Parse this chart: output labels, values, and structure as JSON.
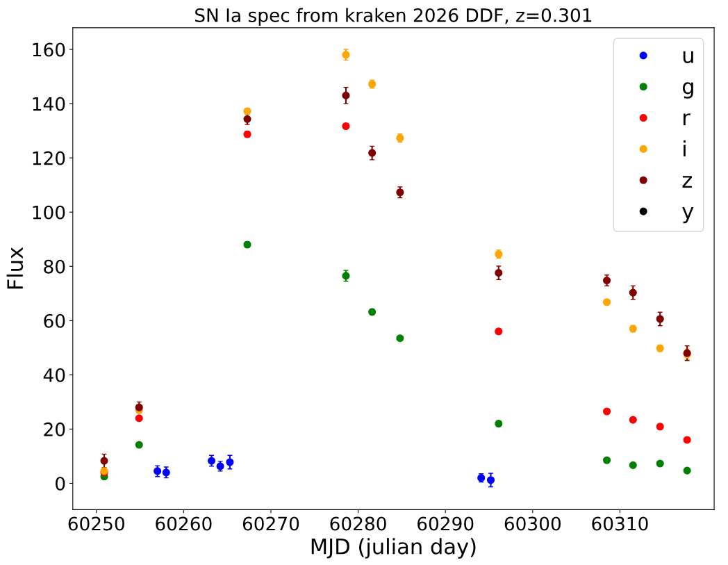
{
  "chart_data": {
    "type": "scatter",
    "title": "SN Ia spec from kraken 2026 DDF, z=0.301",
    "xlabel": "MJD (julian day)",
    "ylabel": "Flux",
    "xlim": [
      60247.3,
      60320.8
    ],
    "ylim": [
      -9.7,
      168
    ],
    "xticks": [
      60250,
      60260,
      60270,
      60280,
      60290,
      60300,
      60310
    ],
    "yticks": [
      0,
      20,
      40,
      60,
      80,
      100,
      120,
      140,
      160
    ],
    "grid": false,
    "legend": "top right",
    "marker": "circle",
    "series": [
      {
        "name": "u",
        "color": "#0000ff",
        "x": [
          60257.0,
          60258.0,
          60263.2,
          60264.2,
          60265.3,
          60294.1,
          60295.2
        ],
        "values": [
          4.5,
          4,
          8.3,
          6.3,
          7.8,
          2,
          1.2
        ],
        "errors": [
          2,
          2,
          2,
          1.8,
          2.5,
          1.5,
          2.5
        ]
      },
      {
        "name": "g",
        "color": "#008000",
        "x": [
          60250.9,
          60254.9,
          60267.3,
          60278.6,
          60281.6,
          60284.8,
          60296.1,
          60308.5,
          60311.5,
          60314.6,
          60317.7
        ],
        "values": [
          2.5,
          14.2,
          88,
          76.5,
          63.2,
          53.5,
          22,
          8.5,
          6.7,
          7.3,
          4.7
        ],
        "errors": [
          0.5,
          0.5,
          1,
          2,
          1,
          0.5,
          1,
          0.5,
          0.5,
          0.5,
          0.3
        ]
      },
      {
        "name": "r",
        "color": "#ff0000",
        "x": [
          60250.9,
          60254.9,
          60267.3,
          60278.6,
          60296.1,
          60308.5,
          60311.5,
          60314.6,
          60317.7
        ],
        "values": [
          4,
          24,
          128.7,
          131.7,
          56,
          26.5,
          23.4,
          20.9,
          16
        ],
        "errors": [
          0.5,
          0.5,
          1,
          1,
          1,
          0.5,
          0.5,
          1,
          0.5
        ]
      },
      {
        "name": "i",
        "color": "#ffa500",
        "x": [
          60250.9,
          60254.9,
          60267.3,
          60278.6,
          60281.6,
          60284.8,
          60296.1,
          60308.5,
          60311.5,
          60314.6,
          60317.7
        ],
        "values": [
          4.5,
          27,
          137.2,
          158,
          147.2,
          127.3,
          84.5,
          66.8,
          57,
          49.8,
          47.5
        ],
        "errors": [
          1,
          1,
          1,
          2,
          1.5,
          1.5,
          1.5,
          1,
          1.2,
          1.2,
          2
        ]
      },
      {
        "name": "z",
        "color": "#800000",
        "x": [
          60250.9,
          60254.9,
          60267.3,
          60278.6,
          60281.6,
          60284.8,
          60296.1,
          60308.5,
          60311.5,
          60314.6,
          60317.7
        ],
        "values": [
          8.3,
          28,
          134.3,
          143,
          121.8,
          107.3,
          77.6,
          74.8,
          70.3,
          60.6,
          48
        ],
        "errors": [
          2.5,
          2,
          2,
          3,
          2.5,
          2,
          2.5,
          2,
          2.5,
          2.5,
          2.7
        ]
      },
      {
        "name": "y",
        "color": "#000000"
      }
    ]
  }
}
